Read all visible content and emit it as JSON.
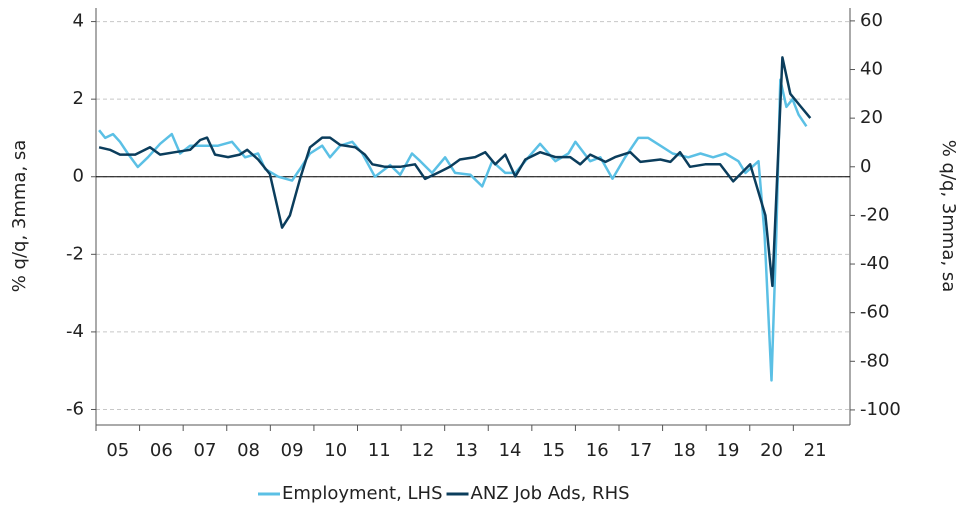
{
  "chart_data": {
    "type": "line",
    "y_label": "% q/q, 3mma, sa",
    "y2_label": "% q/q, 3mma, sa",
    "xlim": [
      2005,
      2022.3
    ],
    "xticks": [
      {
        "value": 2005.5,
        "label": "05"
      },
      {
        "value": 2006.5,
        "label": "06"
      },
      {
        "value": 2007.5,
        "label": "07"
      },
      {
        "value": 2008.5,
        "label": "08"
      },
      {
        "value": 2009.5,
        "label": "09"
      },
      {
        "value": 2010.5,
        "label": "10"
      },
      {
        "value": 2011.5,
        "label": "11"
      },
      {
        "value": 2012.5,
        "label": "12"
      },
      {
        "value": 2013.5,
        "label": "13"
      },
      {
        "value": 2014.5,
        "label": "14"
      },
      {
        "value": 2015.5,
        "label": "15"
      },
      {
        "value": 2016.5,
        "label": "16"
      },
      {
        "value": 2017.5,
        "label": "17"
      },
      {
        "value": 2018.5,
        "label": "18"
      },
      {
        "value": 2019.5,
        "label": "19"
      },
      {
        "value": 2020.5,
        "label": "20"
      },
      {
        "value": 2021.5,
        "label": "21"
      }
    ],
    "ylim": [
      -6.4,
      4.35
    ],
    "yticks": [
      4,
      2,
      0,
      -2,
      -4,
      -6
    ],
    "y2lim": [
      -106.2,
      65.3
    ],
    "y2ticks": [
      60,
      40,
      20,
      0,
      -20,
      -40,
      -60,
      -80,
      -100
    ],
    "grid": true,
    "legend": "bottom",
    "series": [
      {
        "name": "Employment, LHS",
        "color": "#5bc0e5",
        "axis": "y",
        "x": [
          2005.07,
          2005.21,
          2005.39,
          2005.55,
          2005.73,
          2005.96,
          2006.19,
          2006.47,
          2006.74,
          2006.93,
          2007.16,
          2007.5,
          2007.8,
          2008.12,
          2008.42,
          2008.72,
          2008.88,
          2009.18,
          2009.5,
          2009.68,
          2009.91,
          2010.19,
          2010.37,
          2010.6,
          2010.88,
          2011.11,
          2011.4,
          2011.75,
          2011.98,
          2012.25,
          2012.44,
          2012.71,
          2013.01,
          2013.24,
          2013.59,
          2013.86,
          2014.09,
          2014.39,
          2014.62,
          2014.92,
          2015.19,
          2015.54,
          2015.84,
          2016.0,
          2016.34,
          2016.57,
          2016.85,
          2017.14,
          2017.44,
          2017.67,
          2017.95,
          2018.23,
          2018.59,
          2018.87,
          2019.16,
          2019.44,
          2019.74,
          2019.9,
          2020.2,
          2020.34,
          2020.5,
          2020.61,
          2020.7,
          2020.84,
          2020.98,
          2021.12,
          2021.3
        ],
        "values": [
          1.2,
          1.0,
          1.1,
          0.9,
          0.6,
          0.25,
          0.5,
          0.85,
          1.1,
          0.6,
          0.8,
          0.8,
          0.8,
          0.9,
          0.5,
          0.6,
          0.2,
          0.0,
          -0.1,
          0.2,
          0.6,
          0.8,
          0.5,
          0.8,
          0.9,
          0.6,
          0.0,
          0.3,
          0.05,
          0.6,
          0.4,
          0.1,
          0.5,
          0.1,
          0.05,
          -0.25,
          0.4,
          0.1,
          0.1,
          0.5,
          0.85,
          0.4,
          0.6,
          0.9,
          0.4,
          0.5,
          -0.05,
          0.5,
          1.0,
          1.0,
          0.8,
          0.6,
          0.5,
          0.6,
          0.5,
          0.6,
          0.4,
          0.1,
          0.4,
          -1.5,
          -5.25,
          -1.5,
          2.5,
          1.8,
          2.0,
          1.6,
          1.3
        ]
      },
      {
        "name": "ANZ Job Ads, RHS",
        "color": "#0b3d5c",
        "axis": "y2",
        "x": [
          2005.07,
          2005.32,
          2005.55,
          2005.9,
          2006.24,
          2006.47,
          2006.81,
          2007.16,
          2007.39,
          2007.55,
          2007.73,
          2008.03,
          2008.3,
          2008.47,
          2008.72,
          2008.99,
          2009.27,
          2009.45,
          2009.68,
          2009.91,
          2010.19,
          2010.37,
          2010.6,
          2010.95,
          2011.17,
          2011.34,
          2011.63,
          2011.98,
          2012.32,
          2012.55,
          2012.9,
          2013.12,
          2013.35,
          2013.7,
          2013.93,
          2014.16,
          2014.39,
          2014.62,
          2014.85,
          2015.19,
          2015.54,
          2015.88,
          2016.11,
          2016.34,
          2016.69,
          2016.91,
          2017.26,
          2017.49,
          2017.95,
          2018.18,
          2018.4,
          2018.63,
          2018.98,
          2019.32,
          2019.62,
          2020.01,
          2020.36,
          2020.52,
          2020.75,
          2020.93,
          2021.16,
          2021.39
        ],
        "values": [
          8,
          7,
          5,
          5,
          8,
          5,
          6,
          7,
          11,
          12,
          5,
          4,
          5,
          7,
          3,
          -3,
          -25,
          -20,
          -5,
          8,
          12,
          12,
          9,
          8,
          5,
          1,
          0,
          0,
          1,
          -5,
          -2,
          0,
          3,
          4,
          6,
          1,
          5,
          -4,
          3,
          6,
          4,
          4,
          1,
          5,
          2,
          4,
          6,
          2,
          3,
          2,
          6,
          0,
          1,
          1,
          -6,
          1,
          -20,
          -49,
          45,
          30,
          25,
          20
        ]
      }
    ]
  }
}
